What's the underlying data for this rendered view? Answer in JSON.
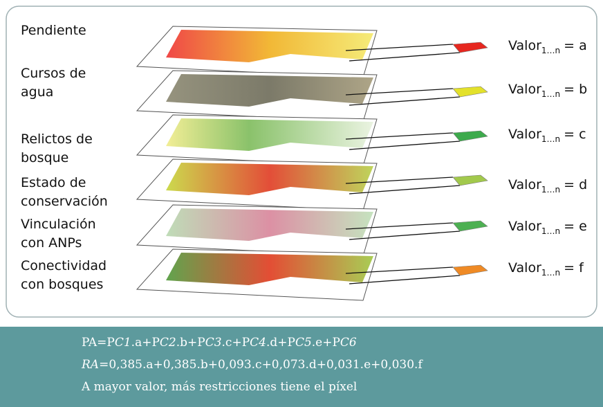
{
  "layers": [
    {
      "label": [
        "Pendiente"
      ],
      "value": [
        "Valor",
        "1…n",
        "= a"
      ],
      "color": "#e6271f"
    },
    {
      "label": [
        "Cursos de",
        "agua"
      ],
      "value": [
        "Valor",
        "1…n",
        "= b"
      ],
      "color": "#e3e12b"
    },
    {
      "label": [
        "Relictos de",
        "bosque"
      ],
      "value": [
        "Valor",
        "1…n",
        "= c"
      ],
      "color": "#3daa4c"
    },
    {
      "label": [
        "Estado de",
        "conservación"
      ],
      "value": [
        "Valor",
        "1…n",
        "= d"
      ],
      "color": "#a2c94c"
    },
    {
      "label": [
        "Vinculación",
        "con ANPs"
      ],
      "value": [
        "Valor",
        "1…n",
        "= e"
      ],
      "color": "#4db052"
    },
    {
      "label": [
        "Conectividad",
        "con bosques"
      ],
      "value": [
        "Valor",
        "1…n",
        "= f"
      ],
      "color": "#ef8a25"
    }
  ],
  "formula": [
    [
      {
        "text": "PA=P"
      },
      {
        "text": "C1",
        "italic": true
      },
      {
        "text": ".a+P"
      },
      {
        "text": "C2",
        "italic": true
      },
      {
        "text": ".b+P"
      },
      {
        "text": "C3",
        "italic": true
      },
      {
        "text": ".c+P"
      },
      {
        "text": "C4",
        "italic": true
      },
      {
        "text": ".d+P"
      },
      {
        "text": "C5",
        "italic": true
      },
      {
        "text": ".e+P"
      },
      {
        "text": "C6",
        "italic": true
      }
    ],
    [
      {
        "text": "RA",
        "italic": true
      },
      {
        "text": "=0,385.a+0,385.b+0,093.c+0,073.d+0,031.e+0,030.f"
      }
    ],
    [
      {
        "text": "A mayor valor, más restricciones tiene el píxel"
      }
    ]
  ]
}
